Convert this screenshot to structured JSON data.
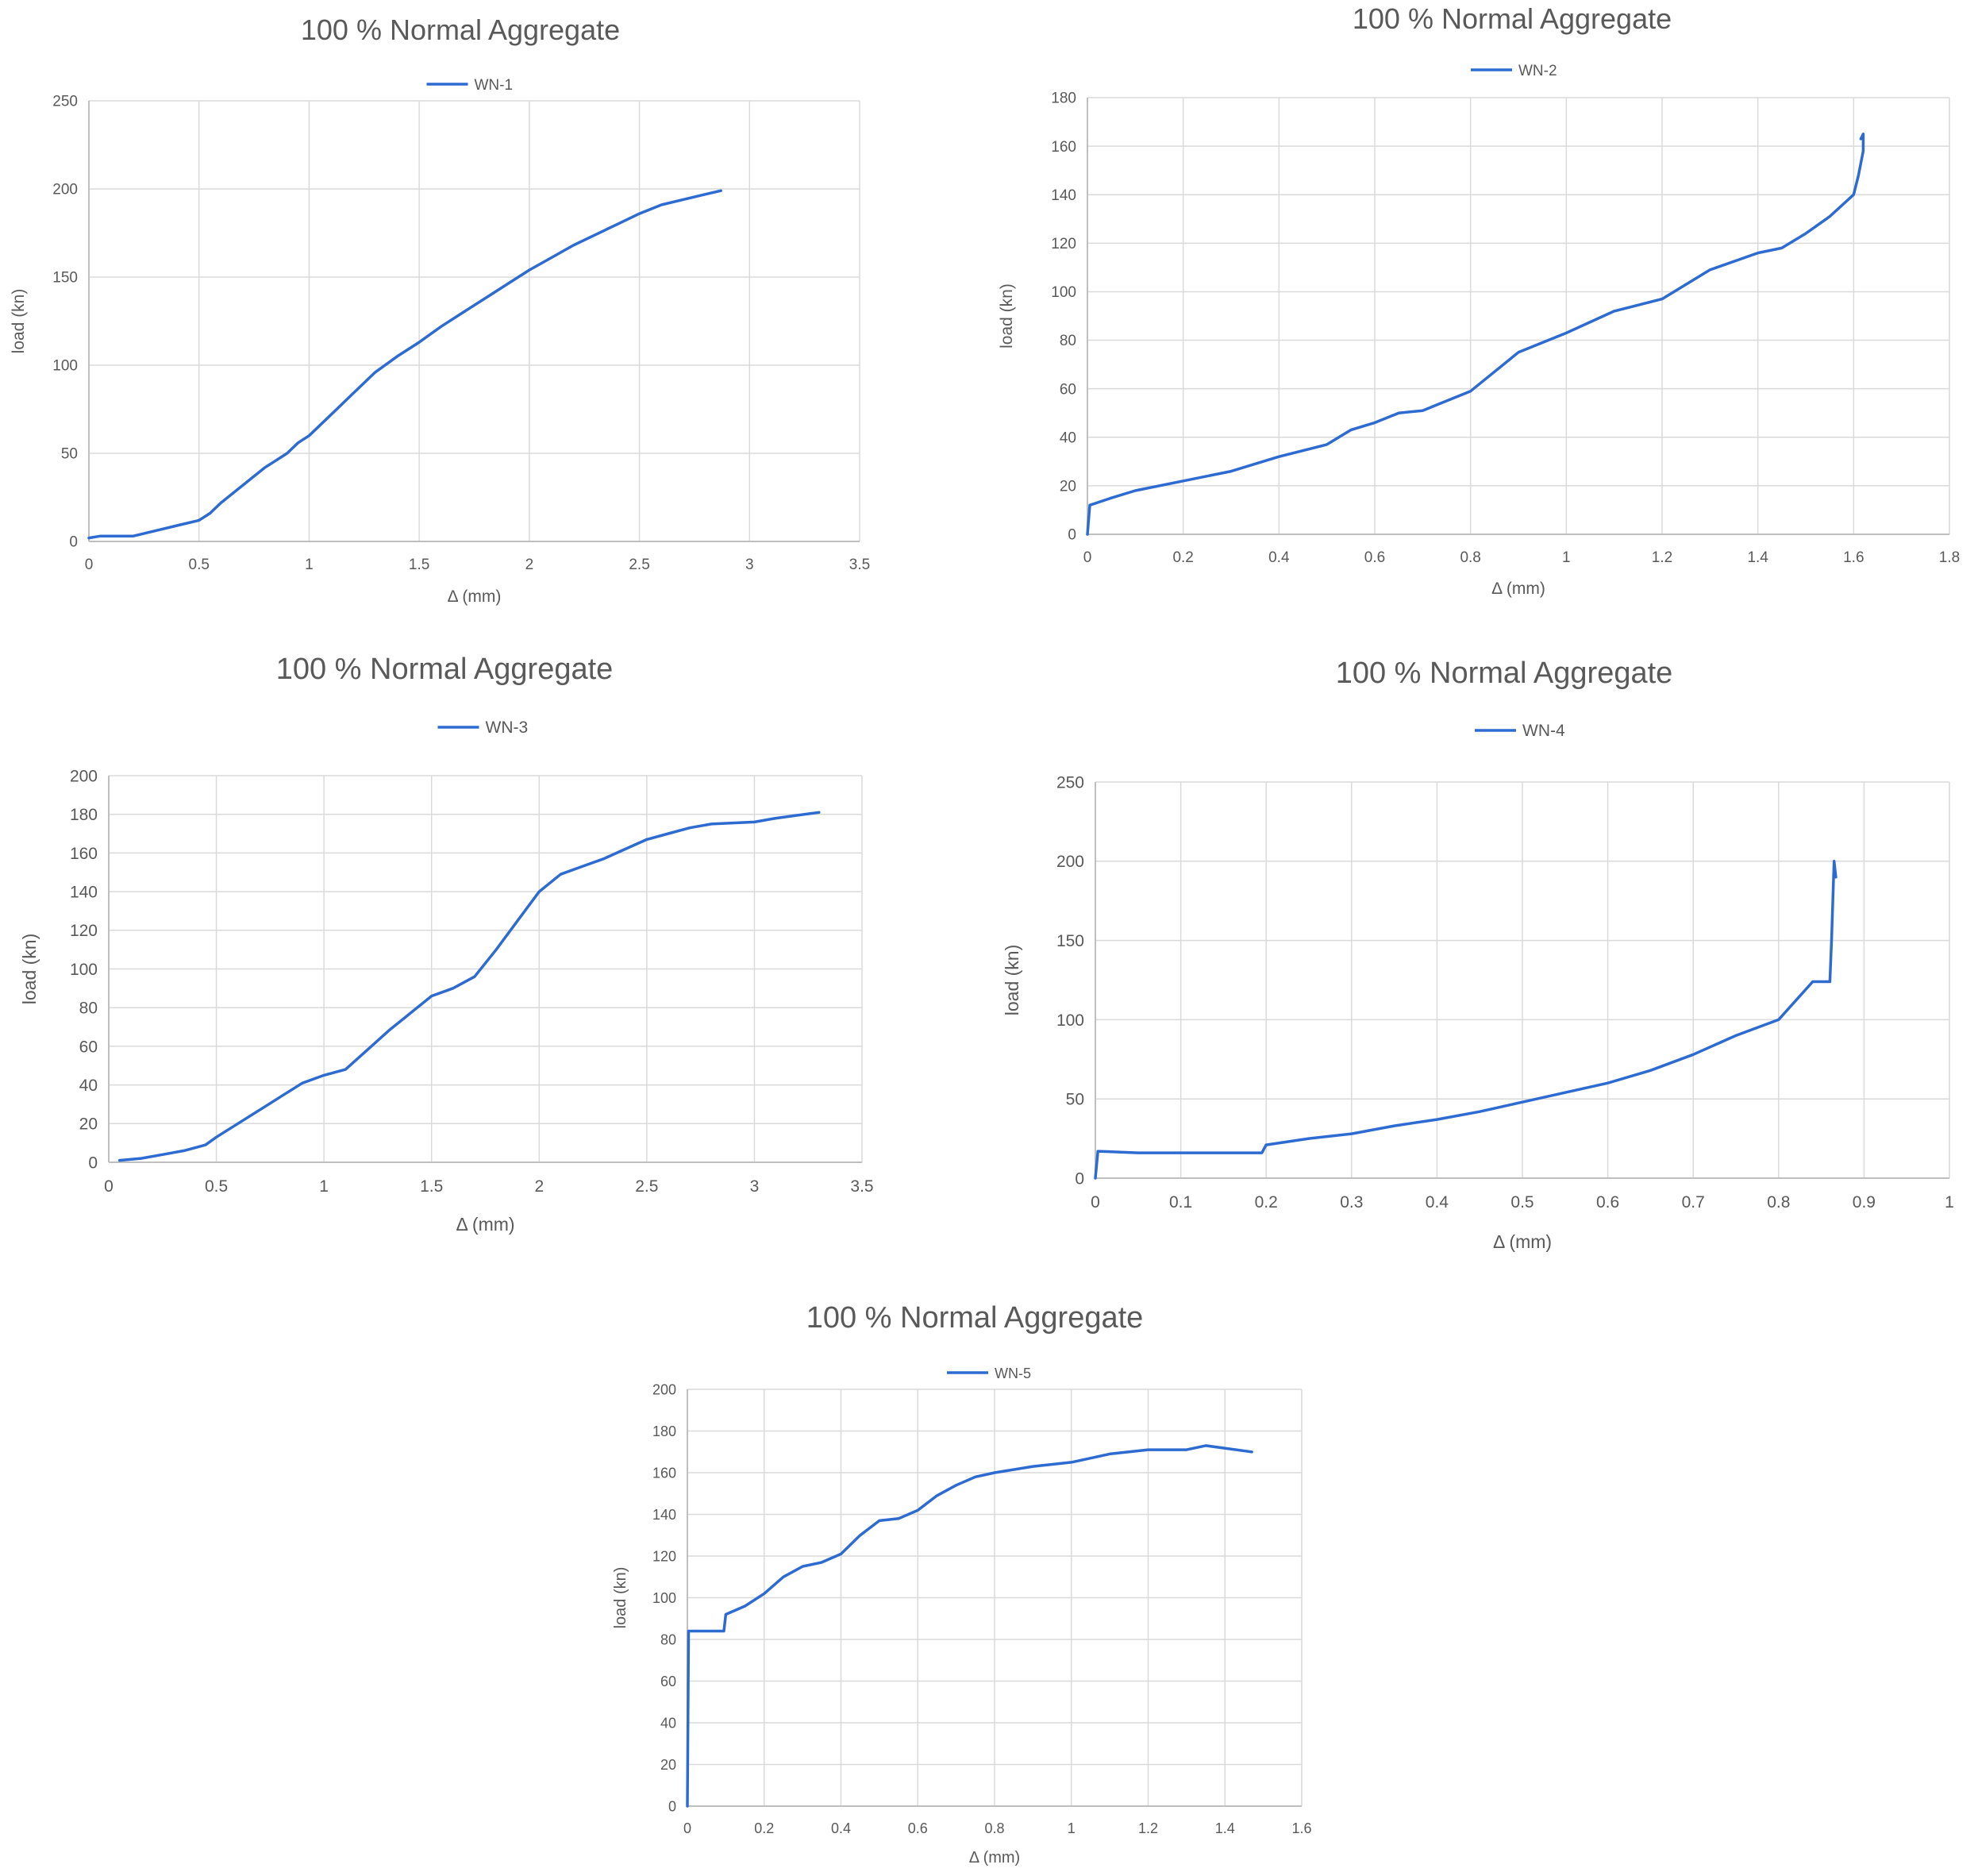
{
  "colors": {
    "series": "#2E6BD1",
    "grid": "#DADADA",
    "axis": "#BFBFBF",
    "title": "#595959",
    "tick": "#595959"
  },
  "chart_data": [
    {
      "type": "line",
      "title": "100 % Normal Aggregate",
      "xlabel": "Δ (mm)",
      "ylabel": "load (kn)",
      "xlim": [
        0,
        3.5
      ],
      "ylim": [
        0,
        250
      ],
      "xticks": [
        0,
        0.5,
        1,
        1.5,
        2,
        2.5,
        3,
        3.5
      ],
      "xtick_labels": [
        "0",
        "0.5",
        "1",
        "1.5",
        "2",
        "2.5",
        "3",
        "3.5"
      ],
      "yticks": [
        0,
        50,
        100,
        150,
        200,
        250
      ],
      "ytick_labels": [
        "0",
        "50",
        "100",
        "150",
        "200",
        "250"
      ],
      "legend": "top",
      "grid": true,
      "series": [
        {
          "name": "WN-1",
          "x": [
            0,
            0.05,
            0.2,
            0.3,
            0.4,
            0.5,
            0.55,
            0.6,
            0.7,
            0.8,
            0.9,
            0.95,
            1.0,
            1.1,
            1.2,
            1.3,
            1.4,
            1.5,
            1.6,
            1.7,
            1.8,
            1.9,
            2.0,
            2.1,
            2.2,
            2.3,
            2.4,
            2.5,
            2.6,
            2.7,
            2.8,
            2.87
          ],
          "y": [
            2,
            3,
            3,
            6,
            9,
            12,
            16,
            22,
            32,
            42,
            50,
            56,
            60,
            72,
            84,
            96,
            105,
            113,
            122,
            130,
            138,
            146,
            154,
            161,
            168,
            174,
            180,
            186,
            191,
            194,
            197,
            199
          ]
        }
      ]
    },
    {
      "type": "line",
      "title": "100 % Normal Aggregate",
      "xlabel": "Δ (mm)",
      "ylabel": "load (kn)",
      "xlim": [
        0,
        1.8
      ],
      "ylim": [
        0,
        180
      ],
      "xticks": [
        0,
        0.2,
        0.4,
        0.6,
        0.8,
        1,
        1.2,
        1.4,
        1.6,
        1.8
      ],
      "xtick_labels": [
        "0",
        "0.2",
        "0.4",
        "0.6",
        "0.8",
        "1",
        "1.2",
        "1.4",
        "1.6",
        "1.8"
      ],
      "yticks": [
        0,
        20,
        40,
        60,
        80,
        100,
        120,
        140,
        160,
        180
      ],
      "ytick_labels": [
        "0",
        "20",
        "40",
        "60",
        "80",
        "100",
        "120",
        "140",
        "160",
        "180"
      ],
      "legend": "top",
      "grid": true,
      "series": [
        {
          "name": "WN-2",
          "x": [
            0,
            0.005,
            0.05,
            0.1,
            0.2,
            0.3,
            0.4,
            0.5,
            0.55,
            0.6,
            0.65,
            0.7,
            0.8,
            0.9,
            1.0,
            1.1,
            1.2,
            1.3,
            1.4,
            1.45,
            1.5,
            1.55,
            1.6,
            1.61,
            1.62,
            1.62,
            1.615
          ],
          "y": [
            0,
            12,
            15,
            18,
            22,
            26,
            32,
            37,
            43,
            46,
            50,
            51,
            59,
            75,
            83,
            92,
            97,
            109,
            116,
            118,
            124,
            131,
            140,
            148,
            158,
            165,
            163
          ]
        }
      ]
    },
    {
      "type": "line",
      "title": "100 % Normal Aggregate",
      "xlabel": "Δ (mm)",
      "ylabel": "load (kn)",
      "xlim": [
        0,
        3.5
      ],
      "ylim": [
        0,
        200
      ],
      "xticks": [
        0,
        0.5,
        1,
        1.5,
        2,
        2.5,
        3,
        3.5
      ],
      "xtick_labels": [
        "0",
        "0.5",
        "1",
        "1.5",
        "2",
        "2.5",
        "3",
        "3.5"
      ],
      "yticks": [
        0,
        20,
        40,
        60,
        80,
        100,
        120,
        140,
        160,
        180,
        200
      ],
      "ytick_labels": [
        "0",
        "20",
        "40",
        "60",
        "80",
        "100",
        "120",
        "140",
        "160",
        "180",
        "200"
      ],
      "legend": "top",
      "grid": true,
      "series": [
        {
          "name": "WN-3",
          "x": [
            0.05,
            0.15,
            0.25,
            0.35,
            0.45,
            0.5,
            0.6,
            0.7,
            0.8,
            0.9,
            1.0,
            1.1,
            1.2,
            1.3,
            1.4,
            1.5,
            1.6,
            1.7,
            1.8,
            1.9,
            2.0,
            2.1,
            2.2,
            2.3,
            2.4,
            2.5,
            2.6,
            2.7,
            2.8,
            3.0,
            3.1,
            3.3
          ],
          "y": [
            1,
            2,
            4,
            6,
            9,
            13,
            20,
            27,
            34,
            41,
            45,
            48,
            58,
            68,
            77,
            86,
            90,
            96,
            110,
            125,
            140,
            149,
            153,
            157,
            162,
            167,
            170,
            173,
            175,
            176,
            178,
            181
          ]
        }
      ]
    },
    {
      "type": "line",
      "title": "100 % Normal Aggregate",
      "xlabel": "Δ (mm)",
      "ylabel": "load (kn)",
      "xlim": [
        0,
        1
      ],
      "ylim": [
        0,
        250
      ],
      "xticks": [
        0,
        0.1,
        0.2,
        0.3,
        0.4,
        0.5,
        0.6,
        0.7,
        0.8,
        0.9,
        1
      ],
      "xtick_labels": [
        "0",
        "0.1",
        "0.2",
        "0.3",
        "0.4",
        "0.5",
        "0.6",
        "0.7",
        "0.8",
        "0.9",
        "1"
      ],
      "yticks": [
        0,
        50,
        100,
        150,
        200,
        250
      ],
      "ytick_labels": [
        "0",
        "50",
        "100",
        "150",
        "200",
        "250"
      ],
      "legend": "top",
      "grid": true,
      "series": [
        {
          "name": "WN-4",
          "x": [
            0,
            0.003,
            0.05,
            0.195,
            0.2,
            0.25,
            0.3,
            0.35,
            0.4,
            0.45,
            0.5,
            0.55,
            0.6,
            0.65,
            0.7,
            0.75,
            0.8,
            0.82,
            0.84,
            0.86,
            0.862,
            0.865,
            0.867
          ],
          "y": [
            0,
            17,
            16,
            16,
            21,
            25,
            28,
            33,
            37,
            42,
            48,
            54,
            60,
            68,
            78,
            90,
            100,
            112,
            124,
            124,
            150,
            200,
            190
          ]
        }
      ]
    },
    {
      "type": "line",
      "title": "100 % Normal Aggregate",
      "xlabel": "Δ (mm)",
      "ylabel": "load (kn)",
      "xlim": [
        0,
        1.6
      ],
      "ylim": [
        0,
        200
      ],
      "xticks": [
        0,
        0.2,
        0.4,
        0.6,
        0.8,
        1,
        1.2,
        1.4,
        1.6
      ],
      "xtick_labels": [
        "0",
        "0.2",
        "0.4",
        "0.6",
        "0.8",
        "1",
        "1.2",
        "1.4",
        "1.6"
      ],
      "yticks": [
        0,
        20,
        40,
        60,
        80,
        100,
        120,
        140,
        160,
        180,
        200
      ],
      "ytick_labels": [
        "0",
        "20",
        "40",
        "60",
        "80",
        "100",
        "120",
        "140",
        "160",
        "180",
        "200"
      ],
      "legend": "top",
      "grid": true,
      "series": [
        {
          "name": "WN-5",
          "x": [
            0,
            0.003,
            0.095,
            0.1,
            0.15,
            0.2,
            0.25,
            0.3,
            0.35,
            0.4,
            0.45,
            0.5,
            0.55,
            0.6,
            0.65,
            0.7,
            0.75,
            0.8,
            0.9,
            1.0,
            1.1,
            1.2,
            1.3,
            1.35,
            1.47
          ],
          "y": [
            0,
            84,
            84,
            92,
            96,
            102,
            110,
            115,
            117,
            121,
            130,
            137,
            138,
            142,
            149,
            154,
            158,
            160,
            163,
            165,
            169,
            171,
            171,
            173,
            170
          ]
        }
      ]
    }
  ]
}
